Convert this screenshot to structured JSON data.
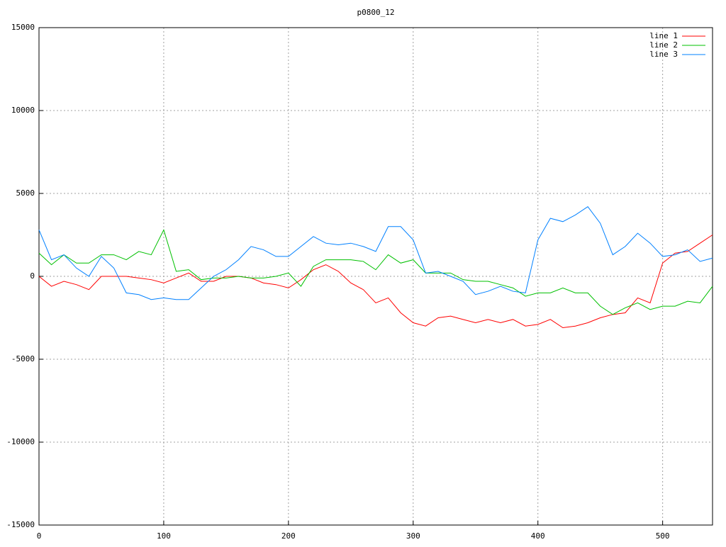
{
  "chart_data": {
    "type": "line",
    "title": "p0800_12",
    "x": [
      0,
      10,
      20,
      30,
      40,
      50,
      60,
      70,
      80,
      90,
      100,
      110,
      120,
      130,
      140,
      150,
      160,
      170,
      180,
      190,
      200,
      210,
      220,
      230,
      240,
      250,
      260,
      270,
      280,
      290,
      300,
      310,
      320,
      330,
      340,
      350,
      360,
      370,
      380,
      390,
      400,
      410,
      420,
      430,
      440,
      450,
      460,
      470,
      480,
      490,
      500,
      510,
      520,
      530,
      540
    ],
    "series": [
      {
        "name": "line 1",
        "color": "#ff0000",
        "values": [
          0,
          -600,
          -300,
          -500,
          -800,
          0,
          0,
          0,
          -100,
          -200,
          -400,
          -100,
          200,
          -300,
          -300,
          0,
          0,
          -100,
          -400,
          -500,
          -700,
          -200,
          400,
          700,
          300,
          -400,
          -800,
          -1600,
          -1300,
          -2200,
          -2800,
          -3000,
          -2500,
          -2400,
          -2600,
          -2800,
          -2600,
          -2800,
          -2600,
          -3000,
          -2900,
          -2600,
          -3100,
          -3000,
          -2800,
          -2500,
          -2300,
          -2200,
          -1300,
          -1600,
          800,
          1400,
          1500,
          2000,
          2500
        ]
      },
      {
        "name": "line 2",
        "color": "#00c000",
        "values": [
          1400,
          700,
          1300,
          800,
          800,
          1300,
          1300,
          1000,
          1500,
          1300,
          2800,
          300,
          400,
          -200,
          -100,
          -100,
          0,
          -100,
          -100,
          0,
          200,
          -600,
          600,
          1000,
          1000,
          1000,
          900,
          400,
          1300,
          800,
          1000,
          200,
          200,
          200,
          -200,
          -300,
          -300,
          -500,
          -700,
          -1200,
          -1000,
          -1000,
          -700,
          -1000,
          -1000,
          -1800,
          -2300,
          -1900,
          -1600,
          -2000,
          -1800,
          -1800,
          -1500,
          -1600,
          -600
        ]
      },
      {
        "name": "line 3",
        "color": "#0080ff",
        "values": [
          2800,
          1000,
          1300,
          500,
          0,
          1200,
          500,
          -1000,
          -1100,
          -1400,
          -1300,
          -1400,
          -1400,
          -700,
          0,
          400,
          1000,
          1800,
          1600,
          1200,
          1200,
          1800,
          2400,
          2000,
          1900,
          2000,
          1800,
          1500,
          3000,
          3000,
          2200,
          200,
          300,
          0,
          -300,
          -1100,
          -900,
          -600,
          -900,
          -1000,
          2200,
          3500,
          3300,
          3700,
          4200,
          3200,
          1300,
          1800,
          2600,
          2000,
          1200,
          1300,
          1600,
          900,
          1100
        ]
      }
    ],
    "xlim": [
      0,
      540
    ],
    "xticks": [
      0,
      100,
      200,
      300,
      400,
      500
    ],
    "ylim": [
      -15000,
      15000
    ],
    "yticks": [
      -15000,
      -10000,
      -5000,
      0,
      5000,
      10000,
      15000
    ],
    "grid": true,
    "legend": "top-right"
  }
}
